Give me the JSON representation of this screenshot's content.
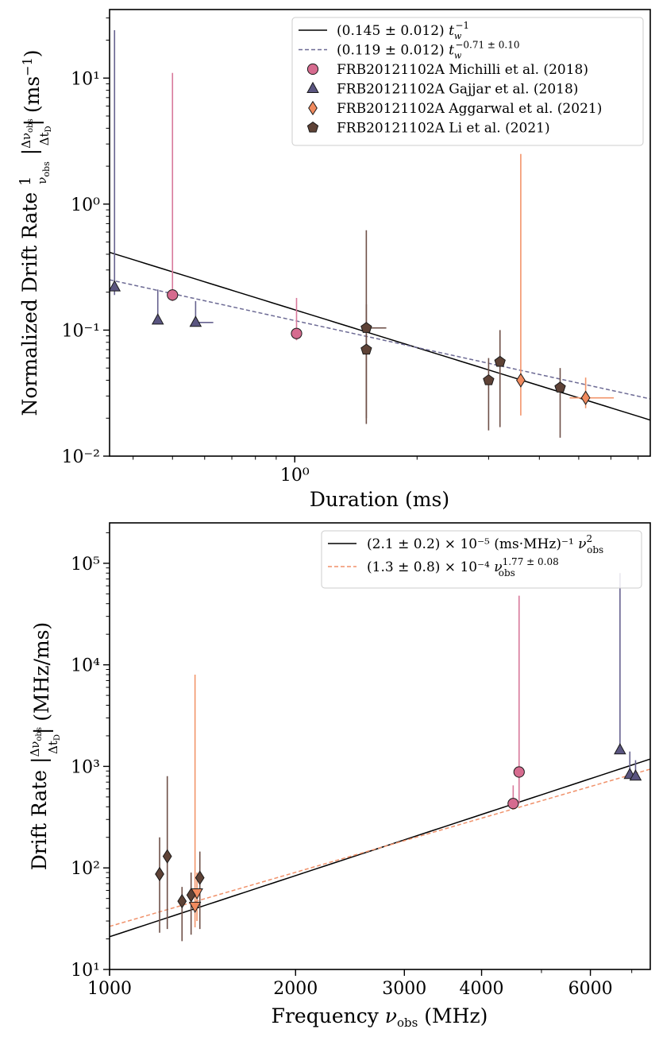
{
  "chart_data": [
    {
      "type": "scatter",
      "scale": "log-log",
      "xlabel": "Duration (ms)",
      "ylabel": "Normalized Drift Rate (1/ν_obs)|Δν_obs/Δt_D| (ms⁻¹)",
      "xlim": [
        0.35,
        7.5
      ],
      "ylim": [
        0.01,
        35
      ],
      "x_tick_labels": [
        {
          "value": 1,
          "label": "10⁰"
        }
      ],
      "y_tick_labels": [
        {
          "value": 0.01,
          "label": "10⁻²"
        },
        {
          "value": 0.1,
          "label": "10⁻¹"
        },
        {
          "value": 1,
          "label": "10⁰"
        },
        {
          "value": 10,
          "label": "10¹"
        }
      ],
      "fits": [
        {
          "name": "(0.145 ± 0.012) t_w^-1",
          "style": "solid",
          "color": "#000000",
          "coef": 0.145,
          "exponent": -1
        },
        {
          "name": "(0.119 ± 0.012) t_w^-0.71±0.10",
          "style": "dashed",
          "color": "#6c6a94",
          "coef": 0.119,
          "exponent": -0.71
        }
      ],
      "series": [
        {
          "name": "FRB20121102A Michilli et al. (2018)",
          "marker": "circle",
          "color": "#d66b8f",
          "errcolor": "#d8799b",
          "points": [
            {
              "x": 0.5,
              "y": 0.19,
              "ylo": 0.17,
              "yhi": 11
            },
            {
              "x": 1.01,
              "y": 0.094,
              "ylo": 0.083,
              "yhi": 0.18
            }
          ]
        },
        {
          "name": "FRB20121102A Gajjar et al. (2018)",
          "marker": "triangle",
          "color": "#5a5580",
          "errcolor": "#66628f",
          "points": [
            {
              "x": 0.36,
              "y": 0.22,
              "ylo": 0.19,
              "yhi": 24
            },
            {
              "x": 0.46,
              "y": 0.12,
              "ylo": 0.12,
              "yhi": 0.21
            },
            {
              "x": 0.57,
              "y": 0.115,
              "ylo": 0.115,
              "yhi": 0.17,
              "xhi": 0.63
            }
          ]
        },
        {
          "name": "FRB20121102A Aggarwal et al. (2021)",
          "marker": "diamond",
          "color": "#f08a5e",
          "errcolor": "#f2956b",
          "points": [
            {
              "x": 3.6,
              "y": 0.04,
              "ylo": 0.021,
              "yhi": 2.5
            },
            {
              "x": 5.2,
              "y": 0.029,
              "ylo": 0.024,
              "yhi": 0.042,
              "xlo": 4.75,
              "xhi": 6.1
            }
          ]
        },
        {
          "name": "FRB20121102A Li et al. (2021)",
          "marker": "pentagon",
          "color": "#5e4236",
          "errcolor": "#6e5048",
          "points": [
            {
              "x": 1.5,
              "y": 0.104,
              "ylo": 0.02,
              "yhi": 0.62,
              "xhi": 1.68
            },
            {
              "x": 1.5,
              "y": 0.07,
              "ylo": 0.018,
              "yhi": 0.16
            },
            {
              "x": 3.0,
              "y": 0.04,
              "ylo": 0.016,
              "yhi": 0.06
            },
            {
              "x": 3.2,
              "y": 0.056,
              "ylo": 0.017,
              "yhi": 0.1
            },
            {
              "x": 4.5,
              "y": 0.035,
              "ylo": 0.014,
              "yhi": 0.05
            }
          ]
        }
      ]
    },
    {
      "type": "scatter",
      "scale": "log-log",
      "xlabel": "Frequency ν_obs (MHz)",
      "ylabel": "Drift Rate |Δν_obs/Δt_D| (MHz/ms)",
      "xlim": [
        1000,
        7500
      ],
      "ylim": [
        10,
        250000
      ],
      "x_tick_labels": [
        {
          "value": 1000,
          "label": "1000"
        },
        {
          "value": 2000,
          "label": "2000"
        },
        {
          "value": 3000,
          "label": "3000"
        },
        {
          "value": 4000,
          "label": "4000"
        },
        {
          "value": 6000,
          "label": "6000"
        }
      ],
      "y_tick_labels": [
        {
          "value": 10,
          "label": "10¹"
        },
        {
          "value": 100,
          "label": "10²"
        },
        {
          "value": 1000,
          "label": "10³"
        },
        {
          "value": 10000,
          "label": "10⁴"
        },
        {
          "value": 100000,
          "label": "10⁵"
        }
      ],
      "fits": [
        {
          "name": "(2.1 ± 0.2) × 10⁻⁵ (ms·MHz)⁻¹ ν_obs²",
          "style": "solid",
          "color": "#000000",
          "coef": 2.1e-05,
          "exponent": 2
        },
        {
          "name": "(1.3 ± 0.8) × 10⁻⁴ ν_obs^1.77±0.08",
          "style": "dashed",
          "color": "#f0916a",
          "coef": 0.00013,
          "exponent": 1.77
        }
      ],
      "series": [
        {
          "name": "Michilli et al. (2018)",
          "marker": "circle",
          "color": "#d66b8f",
          "errcolor": "#d8799b",
          "points": [
            {
              "x": 4500,
              "y": 430,
              "ylo": 430,
              "yhi": 650
            },
            {
              "x": 4600,
              "y": 880,
              "ylo": 430,
              "yhi": 48000
            }
          ]
        },
        {
          "name": "Gajjar et al. (2018)",
          "marker": "triangle",
          "color": "#5a5580",
          "errcolor": "#66628f",
          "points": [
            {
              "x": 6700,
              "y": 1450,
              "ylo": 1450,
              "yhi": 80000
            },
            {
              "x": 6950,
              "y": 830,
              "ylo": 830,
              "yhi": 1400
            },
            {
              "x": 7100,
              "y": 800,
              "ylo": 800,
              "yhi": 1150
            }
          ]
        },
        {
          "name": "Aggarwal et al. (2021)",
          "marker": "triangle-down",
          "color": "#f08a5e",
          "errcolor": "#f2956b",
          "points": [
            {
              "x": 1375,
              "y": 42,
              "ylo": 26,
              "yhi": 8000
            },
            {
              "x": 1385,
              "y": 57,
              "ylo": 30,
              "yhi": 90
            }
          ]
        },
        {
          "name": "Li et al. (2021)",
          "marker": "diamond",
          "color": "#5e4236",
          "errcolor": "#6e5048",
          "points": [
            {
              "x": 1205,
              "y": 87,
              "ylo": 23,
              "yhi": 200
            },
            {
              "x": 1240,
              "y": 130,
              "ylo": 25,
              "yhi": 800
            },
            {
              "x": 1310,
              "y": 47,
              "ylo": 19,
              "yhi": 65
            },
            {
              "x": 1355,
              "y": 54,
              "ylo": 22,
              "yhi": 90
            },
            {
              "x": 1400,
              "y": 80,
              "ylo": 25,
              "yhi": 145
            }
          ]
        }
      ]
    }
  ]
}
